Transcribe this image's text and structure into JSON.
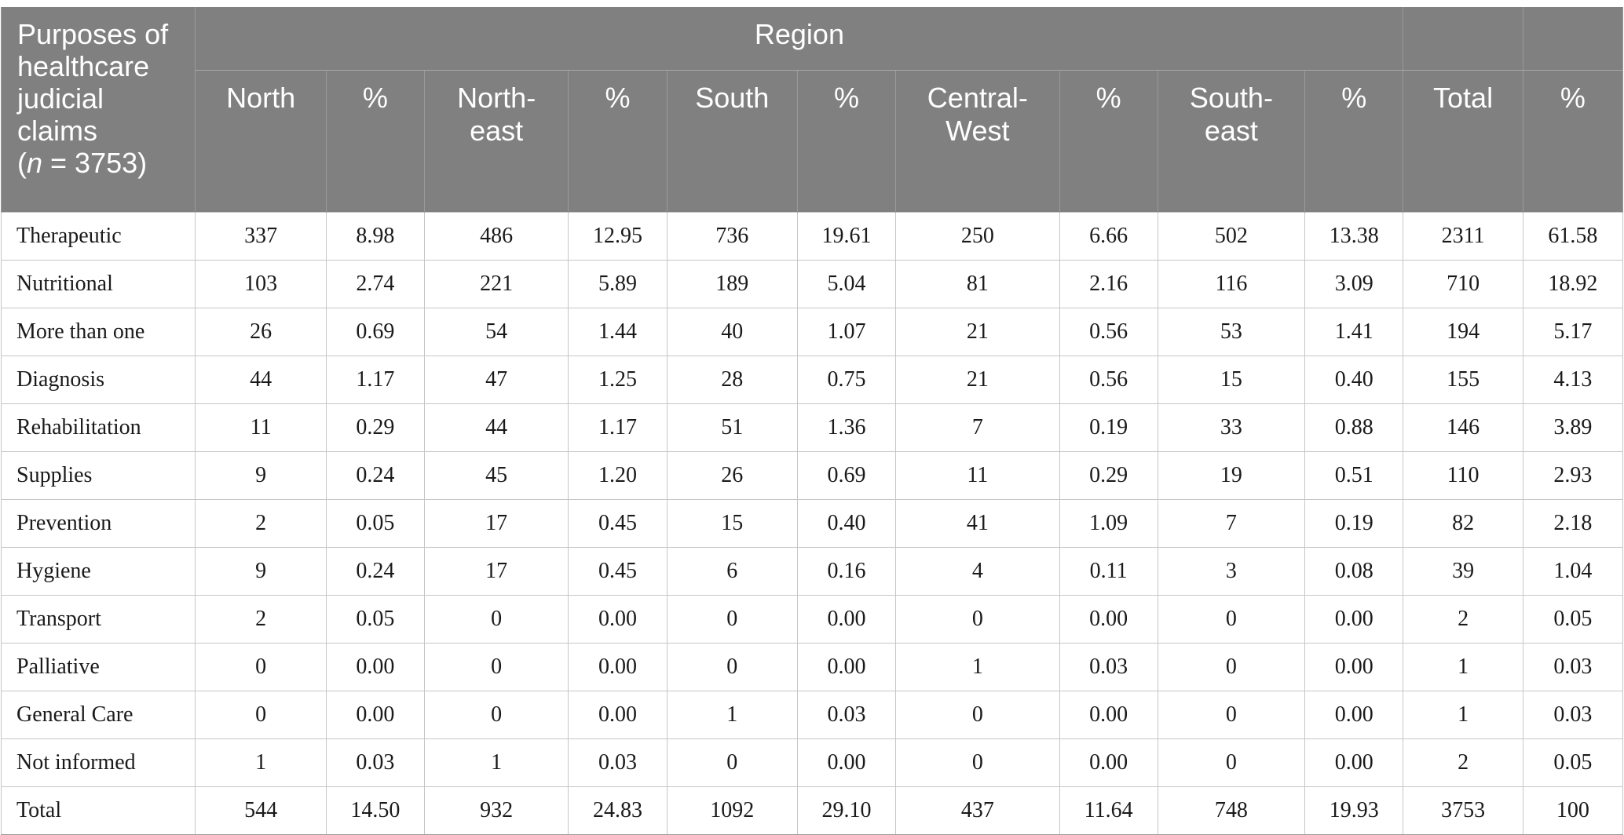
{
  "table": {
    "corner_text": "Purposes of healthcare judicial claims",
    "corner_n_var": "n",
    "corner_n_rest": " = 3753)",
    "region_label": "Region",
    "col_labels": [
      "North",
      "%",
      "North-east",
      "%",
      "South",
      "%",
      "Central-West",
      "%",
      "South-east",
      "%",
      "Total",
      "%"
    ],
    "rows": [
      [
        "Therapeutic",
        "337",
        "8.98",
        "486",
        "12.95",
        "736",
        "19.61",
        "250",
        "6.66",
        "502",
        "13.38",
        "2311",
        "61.58"
      ],
      [
        "Nutritional",
        "103",
        "2.74",
        "221",
        "5.89",
        "189",
        "5.04",
        "81",
        "2.16",
        "116",
        "3.09",
        "710",
        "18.92"
      ],
      [
        "More than one",
        "26",
        "0.69",
        "54",
        "1.44",
        "40",
        "1.07",
        "21",
        "0.56",
        "53",
        "1.41",
        "194",
        "5.17"
      ],
      [
        "Diagnosis",
        "44",
        "1.17",
        "47",
        "1.25",
        "28",
        "0.75",
        "21",
        "0.56",
        "15",
        "0.40",
        "155",
        "4.13"
      ],
      [
        "Rehabilitation",
        "11",
        "0.29",
        "44",
        "1.17",
        "51",
        "1.36",
        "7",
        "0.19",
        "33",
        "0.88",
        "146",
        "3.89"
      ],
      [
        "Supplies",
        "9",
        "0.24",
        "45",
        "1.20",
        "26",
        "0.69",
        "11",
        "0.29",
        "19",
        "0.51",
        "110",
        "2.93"
      ],
      [
        "Prevention",
        "2",
        "0.05",
        "17",
        "0.45",
        "15",
        "0.40",
        "41",
        "1.09",
        "7",
        "0.19",
        "82",
        "2.18"
      ],
      [
        "Hygiene",
        "9",
        "0.24",
        "17",
        "0.45",
        "6",
        "0.16",
        "4",
        "0.11",
        "3",
        "0.08",
        "39",
        "1.04"
      ],
      [
        "Transport",
        "2",
        "0.05",
        "0",
        "0.00",
        "0",
        "0.00",
        "0",
        "0.00",
        "0",
        "0.00",
        "2",
        "0.05"
      ],
      [
        "Palliative",
        "0",
        "0.00",
        "0",
        "0.00",
        "0",
        "0.00",
        "1",
        "0.03",
        "0",
        "0.00",
        "1",
        "0.03"
      ],
      [
        "General Care",
        "0",
        "0.00",
        "0",
        "0.00",
        "1",
        "0.03",
        "0",
        "0.00",
        "0",
        "0.00",
        "1",
        "0.03"
      ],
      [
        "Not informed",
        "1",
        "0.03",
        "1",
        "0.03",
        "0",
        "0.00",
        "0",
        "0.00",
        "0",
        "0.00",
        "2",
        "0.05"
      ],
      [
        "Total",
        "544",
        "14.50",
        "932",
        "24.83",
        "1092",
        "29.10",
        "437",
        "11.64",
        "748",
        "19.93",
        "3753",
        "100"
      ]
    ]
  }
}
